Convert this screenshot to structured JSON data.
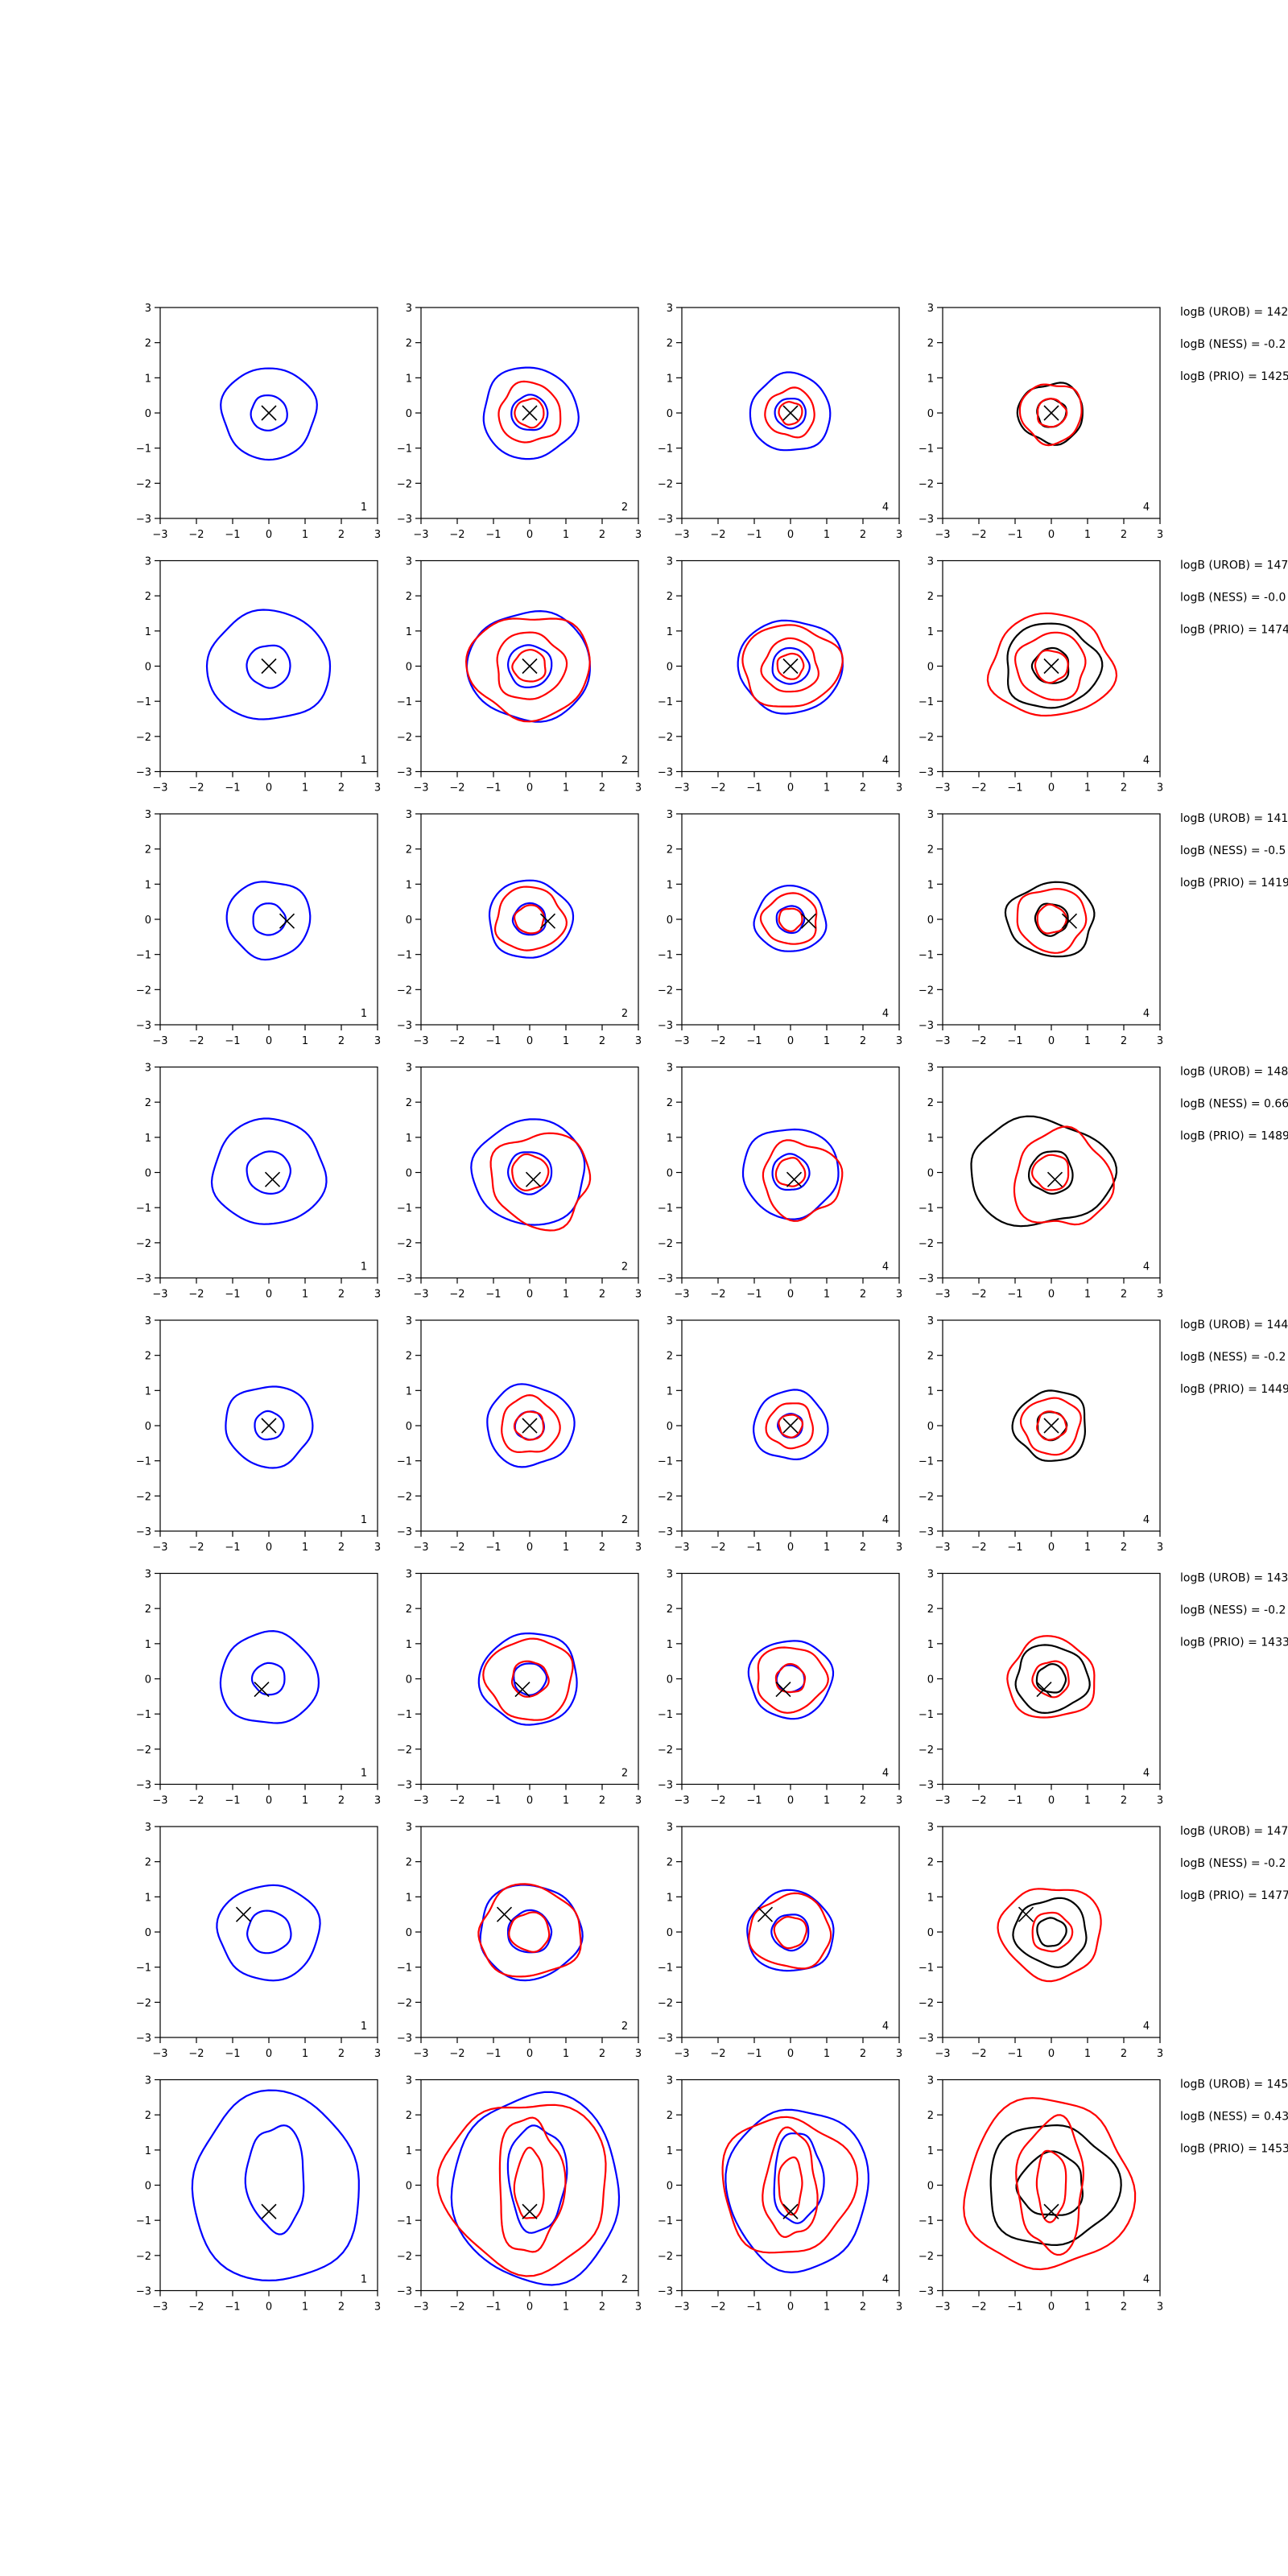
{
  "figure": {
    "rows": 8,
    "cols": 4,
    "xlim": [
      -3,
      3
    ],
    "ylim": [
      -3,
      3
    ],
    "ticks": [
      -3,
      -2,
      -1,
      0,
      1,
      2,
      3
    ],
    "colors": {
      "blue": "#0000ff",
      "red": "#ff0000",
      "black": "#000000"
    },
    "panel_labels": [
      "1",
      "2",
      "4",
      "4"
    ],
    "annotation_labels": [
      "logB (UROB) = ",
      "logB (NESS) = ",
      "logB (PRIO) = "
    ]
  },
  "chart_data": {
    "type": "contour",
    "rows": [
      {
        "marker": [
          0.0,
          0.0
        ],
        "annotations": [
          "142",
          "-0.2",
          "1425"
        ],
        "blue": [
          {
            "cx": 0,
            "cy": 0,
            "rx": 1.3,
            "ry": 1.3,
            "w": 0.06
          },
          {
            "cx": 0,
            "cy": 0,
            "rx": 0.5,
            "ry": 0.5,
            "w": 0.05
          }
        ],
        "red": [
          {
            "cx": 0,
            "cy": 0,
            "rx": 0.85,
            "ry": 0.85,
            "w": 0.1
          },
          {
            "cx": 0,
            "cy": 0,
            "rx": 0.4,
            "ry": 0.4,
            "w": 0.08
          }
        ],
        "black": [
          {
            "cx": 0,
            "cy": 0,
            "rx": 0.9,
            "ry": 0.85,
            "w": 0.1
          },
          {
            "cx": 0,
            "cy": 0,
            "rx": 0.4,
            "ry": 0.4,
            "w": 0.08
          }
        ]
      },
      {
        "marker": [
          0.0,
          0.0
        ],
        "annotations": [
          "147",
          "-0.0",
          "1474"
        ],
        "blue": [
          {
            "cx": 0,
            "cy": 0,
            "rx": 1.7,
            "ry": 1.55,
            "w": 0.05
          },
          {
            "cx": 0,
            "cy": 0,
            "rx": 0.6,
            "ry": 0.6,
            "w": 0.05
          }
        ],
        "red": [
          {
            "cx": 0,
            "cy": 0,
            "rx": 1.7,
            "ry": 1.45,
            "w": 0.1
          },
          {
            "cx": 0,
            "cy": 0,
            "rx": 0.95,
            "ry": 0.95,
            "w": 0.1
          },
          {
            "cx": 0,
            "cy": 0,
            "rx": 0.45,
            "ry": 0.45,
            "w": 0.08
          }
        ],
        "black": [
          {
            "cx": 0,
            "cy": 0,
            "rx": 1.3,
            "ry": 1.2,
            "w": 0.1
          },
          {
            "cx": 0,
            "cy": 0,
            "rx": 0.5,
            "ry": 0.5,
            "w": 0.08
          }
        ]
      },
      {
        "marker": [
          0.5,
          -0.05
        ],
        "annotations": [
          "141",
          "-0.5",
          "1419"
        ],
        "blue": [
          {
            "cx": 0,
            "cy": 0,
            "rx": 1.15,
            "ry": 1.1,
            "w": 0.06
          },
          {
            "cx": 0,
            "cy": 0,
            "rx": 0.45,
            "ry": 0.45,
            "w": 0.05
          }
        ],
        "red": [
          {
            "cx": 0,
            "cy": 0,
            "rx": 0.95,
            "ry": 0.9,
            "w": 0.1
          },
          {
            "cx": 0,
            "cy": 0,
            "rx": 0.4,
            "ry": 0.4,
            "w": 0.08
          }
        ],
        "black": [
          {
            "cx": 0,
            "cy": 0,
            "rx": 1.2,
            "ry": 1.05,
            "w": 0.1
          },
          {
            "cx": 0,
            "cy": 0,
            "rx": 0.45,
            "ry": 0.45,
            "w": 0.08
          }
        ]
      },
      {
        "marker": [
          0.1,
          -0.2
        ],
        "annotations": [
          "148",
          "0.66",
          "1489"
        ],
        "blue": [
          {
            "cx": 0,
            "cy": 0,
            "rx": 1.55,
            "ry": 1.5,
            "w": 0.06
          },
          {
            "cx": 0,
            "cy": 0,
            "rx": 0.6,
            "ry": 0.6,
            "w": 0.05
          }
        ],
        "red": [
          {
            "cx": 0.3,
            "cy": -0.2,
            "rx": 1.35,
            "ry": 1.35,
            "w": 0.14
          },
          {
            "cx": 0,
            "cy": 0,
            "rx": 0.5,
            "ry": 0.5,
            "w": 0.08
          }
        ],
        "black": [
          {
            "cx": -0.3,
            "cy": 0,
            "rx": 2.0,
            "ry": 1.5,
            "w": 0.1
          },
          {
            "cx": 0,
            "cy": 0,
            "rx": 0.6,
            "ry": 0.6,
            "w": 0.08
          }
        ]
      },
      {
        "marker": [
          0.0,
          0.0
        ],
        "annotations": [
          "144",
          "-0.2",
          "1449"
        ],
        "blue": [
          {
            "cx": 0,
            "cy": 0,
            "rx": 1.2,
            "ry": 1.15,
            "w": 0.07
          },
          {
            "cx": 0,
            "cy": 0,
            "rx": 0.4,
            "ry": 0.4,
            "w": 0.05
          }
        ],
        "red": [
          {
            "cx": 0,
            "cy": 0,
            "rx": 0.8,
            "ry": 0.8,
            "w": 0.1
          },
          {
            "cx": 0,
            "cy": 0,
            "rx": 0.4,
            "ry": 0.4,
            "w": 0.08
          }
        ],
        "black": [
          {
            "cx": 0,
            "cy": 0,
            "rx": 1.0,
            "ry": 1.0,
            "w": 0.1
          },
          {
            "cx": 0,
            "cy": 0,
            "rx": 0.4,
            "ry": 0.4,
            "w": 0.08
          }
        ]
      },
      {
        "marker": [
          -0.2,
          -0.3
        ],
        "annotations": [
          "143",
          "-0.2",
          "1433"
        ],
        "blue": [
          {
            "cx": 0,
            "cy": 0,
            "rx": 1.35,
            "ry": 1.3,
            "w": 0.06
          },
          {
            "cx": 0,
            "cy": 0,
            "rx": 0.45,
            "ry": 0.45,
            "w": 0.05
          }
        ],
        "red": [
          {
            "cx": 0,
            "cy": 0,
            "rx": 1.2,
            "ry": 1.15,
            "w": 0.1
          },
          {
            "cx": 0,
            "cy": 0,
            "rx": 0.5,
            "ry": 0.5,
            "w": 0.08
          }
        ],
        "black": [
          {
            "cx": 0,
            "cy": 0,
            "rx": 1.0,
            "ry": 0.95,
            "w": 0.1
          },
          {
            "cx": 0,
            "cy": 0,
            "rx": 0.4,
            "ry": 0.4,
            "w": 0.08
          }
        ]
      },
      {
        "marker": [
          -0.7,
          0.5
        ],
        "annotations": [
          "147",
          "-0.2",
          "1477"
        ],
        "blue": [
          {
            "cx": 0,
            "cy": 0,
            "rx": 1.4,
            "ry": 1.35,
            "w": 0.06
          },
          {
            "cx": 0,
            "cy": 0,
            "rx": 0.6,
            "ry": 0.6,
            "w": 0.05
          }
        ],
        "red": [
          {
            "cx": 0,
            "cy": 0,
            "rx": 1.4,
            "ry": 1.3,
            "w": 0.1
          },
          {
            "cx": 0,
            "cy": 0,
            "rx": 0.55,
            "ry": 0.55,
            "w": 0.08
          }
        ],
        "black": [
          {
            "cx": 0,
            "cy": 0,
            "rx": 1.0,
            "ry": 0.95,
            "w": 0.1
          },
          {
            "cx": 0,
            "cy": 0,
            "rx": 0.4,
            "ry": 0.4,
            "w": 0.08
          }
        ]
      },
      {
        "marker": [
          0.0,
          -0.75
        ],
        "annotations": [
          "145",
          "0.43",
          "1453"
        ],
        "blue": [
          {
            "cx": 0.2,
            "cy": -0.1,
            "rx": 2.3,
            "ry": 2.7,
            "w": 0.06
          },
          {
            "cx": 0.2,
            "cy": 0.2,
            "rx": 0.8,
            "ry": 1.5,
            "w": 0.1
          }
        ],
        "red": [
          {
            "cx": -0.1,
            "cy": 0,
            "rx": 2.3,
            "ry": 2.4,
            "w": 0.1
          },
          {
            "cx": 0,
            "cy": 0,
            "rx": 0.9,
            "ry": 1.9,
            "w": 0.14
          },
          {
            "cx": 0,
            "cy": 0,
            "rx": 0.4,
            "ry": 1.0,
            "w": 0.1
          }
        ],
        "black": [
          {
            "cx": 0,
            "cy": 0,
            "rx": 1.8,
            "ry": 1.7,
            "w": 0.1
          },
          {
            "cx": 0,
            "cy": 0,
            "rx": 0.9,
            "ry": 0.9,
            "w": 0.1
          }
        ]
      }
    ]
  }
}
